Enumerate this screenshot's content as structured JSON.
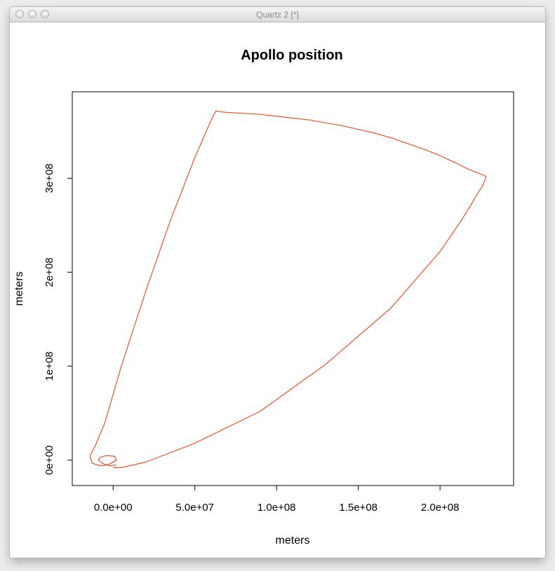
{
  "window": {
    "title": "Quartz 2 [*]",
    "controls": [
      "close-icon",
      "minimize-icon",
      "zoom-icon"
    ]
  },
  "colors": {
    "trajectory": "#f0502e",
    "axis": "#000000"
  },
  "chart_data": {
    "type": "line",
    "title": "Apollo position",
    "xlabel": "meters",
    "ylabel": "meters",
    "xlim": [
      -25000000,
      245000000
    ],
    "ylim": [
      -27000000,
      392000000
    ],
    "x_ticks": [
      0,
      50000000,
      100000000,
      150000000,
      200000000
    ],
    "x_tick_labels": [
      "0.0e+00",
      "5.0e+07",
      "1.0e+08",
      "1.5e+08",
      "2.0e+08"
    ],
    "y_ticks": [
      0,
      100000000,
      200000000,
      300000000
    ],
    "y_tick_labels": [
      "0e+00",
      "1e+08",
      "2e+08",
      "3e+08"
    ],
    "grid": false,
    "legend": "none",
    "series": [
      {
        "x": [
          0,
          5000000,
          20000000,
          50000000,
          90000000,
          130000000,
          170000000,
          200000000,
          213000000,
          220000000,
          226000000,
          228000000,
          228000000,
          224000000,
          218000000,
          210000000,
          200000000,
          190000000,
          180000000,
          170000000,
          160000000,
          150000000,
          140000000,
          130000000,
          120000000,
          110000000,
          100000000,
          90000000,
          80000000,
          70000000,
          64000000,
          63000000,
          60000000,
          50000000,
          35000000,
          20000000,
          5000000,
          -5000000,
          -11000000,
          -14000000,
          -13000000,
          -10000000,
          -6000000,
          -2000000,
          2000000,
          1000000,
          -4000000,
          -8000000,
          -9000000,
          -6000000,
          -2000000,
          2000000
        ],
        "y": [
          -8000000,
          -8000000,
          -2000000,
          18000000,
          52000000,
          102000000,
          162000000,
          222000000,
          255000000,
          275000000,
          292000000,
          300000000,
          302000000,
          305000000,
          309000000,
          316000000,
          324000000,
          331000000,
          337000000,
          343000000,
          348000000,
          352000000,
          356000000,
          359000000,
          362000000,
          364000000,
          366000000,
          368000000,
          369000000,
          370000000,
          371000000,
          372000000,
          362000000,
          322000000,
          255000000,
          180000000,
          100000000,
          40000000,
          15000000,
          5000000,
          -3000000,
          -5000000,
          -6000000,
          -4000000,
          0,
          4000000,
          5000000,
          3000000,
          0,
          -4000000,
          -6000000,
          -5000000
        ]
      }
    ]
  }
}
